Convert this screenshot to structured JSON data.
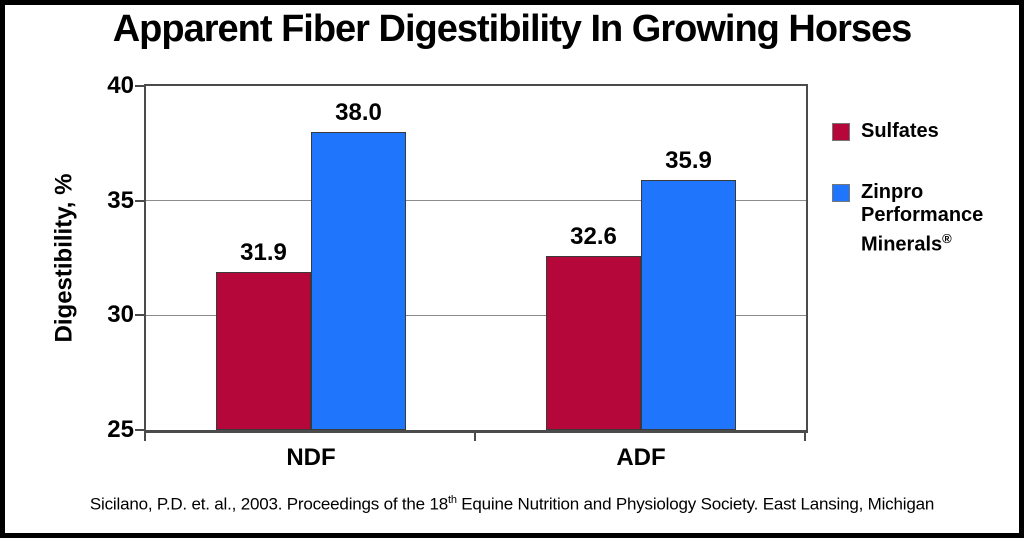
{
  "chart_data": {
    "type": "bar",
    "title": "Apparent Fiber Digestibility In Growing Horses",
    "categories": [
      "NDF",
      "ADF"
    ],
    "series": [
      {
        "name": "Sulfates",
        "values": [
          31.9,
          32.6
        ],
        "color": "#B5073A"
      },
      {
        "name": "Zinpro Performance Minerals®",
        "values": [
          38.0,
          35.9
        ],
        "color": "#1F75FC"
      }
    ],
    "ylabel": "Digestibility, %",
    "ylim": [
      25,
      40
    ],
    "yticks": [
      25,
      30,
      35,
      40
    ],
    "grid": true,
    "value_labels": true,
    "value_label_decimals": 1,
    "legend_position": "right"
  },
  "legend": {
    "items": [
      {
        "label": "Sulfates",
        "registered_mark": "",
        "color": "#B5073A"
      },
      {
        "label": "Zinpro Performance Minerals",
        "registered_mark": "®",
        "color": "#1F75FC"
      }
    ]
  },
  "citation": {
    "prefix": "Sicilano, P.D. et. al., 2003. Proceedings of the 18",
    "sup": "th",
    "suffix": " Equine Nutrition and Physiology Society. East Lansing, Michigan"
  },
  "colors": {
    "axis": "#4b4b4b",
    "gridline": "#8c8c8c",
    "frame_border": "#000000",
    "background": "#ffffff"
  }
}
